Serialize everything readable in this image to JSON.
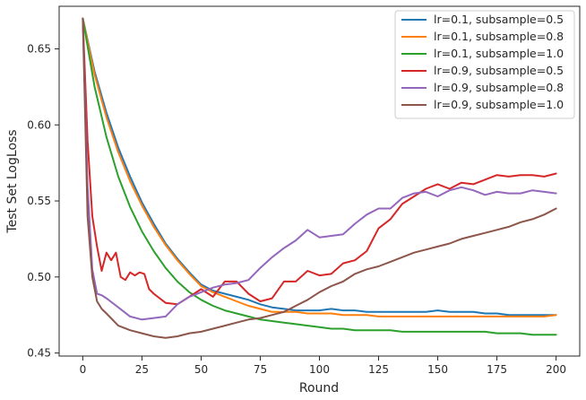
{
  "chart_data": {
    "type": "line",
    "title": "",
    "xlabel": "Round",
    "ylabel": "Test Set LogLoss",
    "xlim": [
      -10,
      210
    ],
    "ylim": [
      0.448,
      0.678
    ],
    "xticks": [
      0,
      25,
      50,
      75,
      100,
      125,
      150,
      175,
      200
    ],
    "yticks": [
      0.45,
      0.5,
      0.55,
      0.6,
      0.65
    ],
    "ytick_labels": [
      "0.45",
      "0.50",
      "0.55",
      "0.60",
      "0.65"
    ],
    "grid": false,
    "legend_position": "top-right",
    "series": [
      {
        "name": "lr=0.1, subsample=0.5",
        "color": "#1f77b4",
        "x": [
          0,
          5,
          10,
          15,
          20,
          25,
          30,
          35,
          40,
          45,
          50,
          55,
          60,
          65,
          70,
          75,
          80,
          85,
          90,
          95,
          100,
          105,
          110,
          115,
          120,
          125,
          130,
          135,
          140,
          145,
          150,
          155,
          160,
          165,
          170,
          175,
          180,
          185,
          190,
          195,
          200
        ],
        "y": [
          0.67,
          0.635,
          0.608,
          0.585,
          0.566,
          0.549,
          0.535,
          0.522,
          0.512,
          0.503,
          0.495,
          0.491,
          0.489,
          0.487,
          0.485,
          0.482,
          0.48,
          0.479,
          0.478,
          0.478,
          0.478,
          0.479,
          0.478,
          0.478,
          0.477,
          0.477,
          0.477,
          0.477,
          0.477,
          0.477,
          0.478,
          0.477,
          0.477,
          0.477,
          0.476,
          0.476,
          0.475,
          0.475,
          0.475,
          0.475,
          0.475
        ]
      },
      {
        "name": "lr=0.1, subsample=0.8",
        "color": "#ff7f0e",
        "x": [
          0,
          5,
          10,
          15,
          20,
          25,
          30,
          35,
          40,
          45,
          50,
          55,
          60,
          65,
          70,
          75,
          80,
          85,
          90,
          95,
          100,
          105,
          110,
          115,
          120,
          125,
          130,
          135,
          140,
          145,
          150,
          155,
          160,
          165,
          170,
          175,
          180,
          185,
          190,
          195,
          200
        ],
        "y": [
          0.67,
          0.633,
          0.605,
          0.582,
          0.563,
          0.547,
          0.533,
          0.521,
          0.511,
          0.502,
          0.494,
          0.49,
          0.487,
          0.484,
          0.481,
          0.479,
          0.477,
          0.477,
          0.477,
          0.476,
          0.476,
          0.476,
          0.475,
          0.475,
          0.475,
          0.474,
          0.474,
          0.474,
          0.474,
          0.474,
          0.474,
          0.474,
          0.474,
          0.474,
          0.474,
          0.474,
          0.474,
          0.474,
          0.474,
          0.474,
          0.475
        ]
      },
      {
        "name": "lr=0.1, subsample=1.0",
        "color": "#2ca02c",
        "x": [
          0,
          5,
          10,
          15,
          20,
          25,
          30,
          35,
          40,
          45,
          50,
          55,
          60,
          65,
          70,
          75,
          80,
          85,
          90,
          95,
          100,
          105,
          110,
          115,
          120,
          125,
          130,
          135,
          140,
          145,
          150,
          155,
          160,
          165,
          170,
          175,
          180,
          185,
          190,
          195,
          200
        ],
        "y": [
          0.67,
          0.625,
          0.592,
          0.566,
          0.546,
          0.53,
          0.517,
          0.506,
          0.497,
          0.49,
          0.485,
          0.481,
          0.478,
          0.476,
          0.474,
          0.472,
          0.471,
          0.47,
          0.469,
          0.468,
          0.467,
          0.466,
          0.466,
          0.465,
          0.465,
          0.465,
          0.465,
          0.464,
          0.464,
          0.464,
          0.464,
          0.464,
          0.464,
          0.464,
          0.464,
          0.463,
          0.463,
          0.463,
          0.462,
          0.462,
          0.462
        ]
      },
      {
        "name": "lr=0.9, subsample=0.5",
        "color": "#d62728",
        "x": [
          0,
          2,
          4,
          6,
          8,
          10,
          12,
          14,
          16,
          18,
          20,
          22,
          24,
          26,
          28,
          30,
          35,
          40,
          45,
          50,
          55,
          60,
          65,
          70,
          75,
          80,
          85,
          90,
          95,
          100,
          105,
          110,
          115,
          120,
          125,
          130,
          135,
          140,
          145,
          150,
          155,
          160,
          165,
          170,
          175,
          180,
          185,
          190,
          195,
          200
        ],
        "y": [
          0.67,
          0.59,
          0.54,
          0.52,
          0.504,
          0.516,
          0.511,
          0.516,
          0.5,
          0.498,
          0.503,
          0.501,
          0.503,
          0.502,
          0.492,
          0.489,
          0.483,
          0.482,
          0.487,
          0.492,
          0.487,
          0.497,
          0.497,
          0.489,
          0.484,
          0.486,
          0.497,
          0.497,
          0.504,
          0.501,
          0.502,
          0.509,
          0.511,
          0.517,
          0.532,
          0.538,
          0.548,
          0.553,
          0.558,
          0.561,
          0.558,
          0.562,
          0.561,
          0.564,
          0.567,
          0.566,
          0.567,
          0.567,
          0.566,
          0.568
        ]
      },
      {
        "name": "lr=0.9, subsample=0.8",
        "color": "#9467bd",
        "x": [
          0,
          2,
          4,
          6,
          8,
          10,
          15,
          20,
          25,
          30,
          35,
          40,
          45,
          50,
          55,
          60,
          65,
          70,
          75,
          80,
          85,
          90,
          95,
          100,
          105,
          110,
          115,
          120,
          125,
          130,
          135,
          140,
          145,
          150,
          155,
          160,
          165,
          170,
          175,
          180,
          185,
          190,
          195,
          200
        ],
        "y": [
          0.67,
          0.56,
          0.505,
          0.489,
          0.488,
          0.486,
          0.48,
          0.474,
          0.472,
          0.473,
          0.474,
          0.482,
          0.487,
          0.49,
          0.493,
          0.495,
          0.496,
          0.498,
          0.506,
          0.513,
          0.519,
          0.524,
          0.531,
          0.526,
          0.527,
          0.528,
          0.535,
          0.541,
          0.545,
          0.545,
          0.552,
          0.555,
          0.556,
          0.553,
          0.557,
          0.559,
          0.557,
          0.554,
          0.556,
          0.555,
          0.555,
          0.557,
          0.556,
          0.555
        ]
      },
      {
        "name": "lr=0.9, subsample=1.0",
        "color": "#8c564b",
        "x": [
          0,
          2,
          4,
          6,
          8,
          10,
          15,
          20,
          25,
          30,
          35,
          40,
          45,
          50,
          55,
          60,
          65,
          70,
          75,
          80,
          85,
          90,
          95,
          100,
          105,
          110,
          115,
          120,
          125,
          130,
          135,
          140,
          145,
          150,
          155,
          160,
          165,
          170,
          175,
          180,
          185,
          190,
          195,
          200
        ],
        "y": [
          0.67,
          0.54,
          0.5,
          0.484,
          0.479,
          0.476,
          0.468,
          0.465,
          0.463,
          0.461,
          0.46,
          0.461,
          0.463,
          0.464,
          0.466,
          0.468,
          0.47,
          0.472,
          0.473,
          0.475,
          0.477,
          0.481,
          0.485,
          0.49,
          0.494,
          0.497,
          0.502,
          0.505,
          0.507,
          0.51,
          0.513,
          0.516,
          0.518,
          0.52,
          0.522,
          0.525,
          0.527,
          0.529,
          0.531,
          0.533,
          0.536,
          0.538,
          0.541,
          0.545
        ]
      }
    ]
  }
}
